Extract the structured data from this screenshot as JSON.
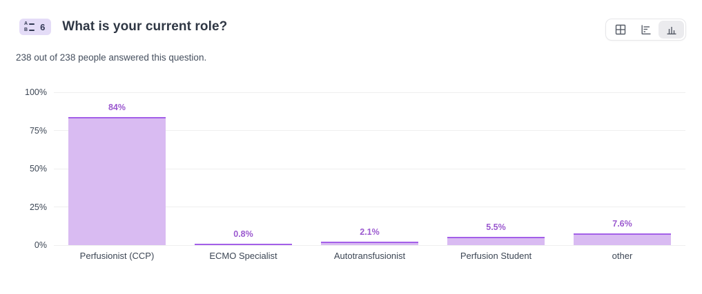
{
  "header": {
    "badge": {
      "icon": "multiple-choice-icon",
      "number": "6"
    },
    "title": "What is your current role?",
    "subtitle": "238 out of 238 people answered this question.",
    "view_toggle": {
      "options": [
        {
          "label": "table-view",
          "icon": "grid-icon",
          "selected": false
        },
        {
          "label": "horizontal-bar-view",
          "icon": "bar-chart-horizontal-icon",
          "selected": false
        },
        {
          "label": "column-chart-view",
          "icon": "bar-chart-vertical-icon",
          "selected": true
        }
      ]
    }
  },
  "chart_data": {
    "type": "bar",
    "title": "What is your current role?",
    "categories": [
      "Perfusionist (CCP)",
      "ECMO Specialist",
      "Autotransfusionist",
      "Perfusion Student",
      "other"
    ],
    "values": [
      84,
      0.8,
      2.1,
      5.5,
      7.6
    ],
    "value_labels": [
      "84%",
      "0.8%",
      "2.1%",
      "5.5%",
      "7.6%"
    ],
    "xlabel": "",
    "ylabel": "",
    "ylim": [
      0,
      100
    ],
    "y_ticks": [
      {
        "label": "100%",
        "value": 100
      },
      {
        "label": "75%",
        "value": 75
      },
      {
        "label": "50%",
        "value": 50
      },
      {
        "label": "25%",
        "value": 25
      },
      {
        "label": "0%",
        "value": 0
      }
    ],
    "grid": true,
    "legend": false,
    "colors": {
      "bar_fill": "#d9bbf2",
      "bar_border": "#a35fe8",
      "value_label": "#9b59cf",
      "gridline": "#efefef",
      "axis_text": "#3c4654"
    }
  }
}
